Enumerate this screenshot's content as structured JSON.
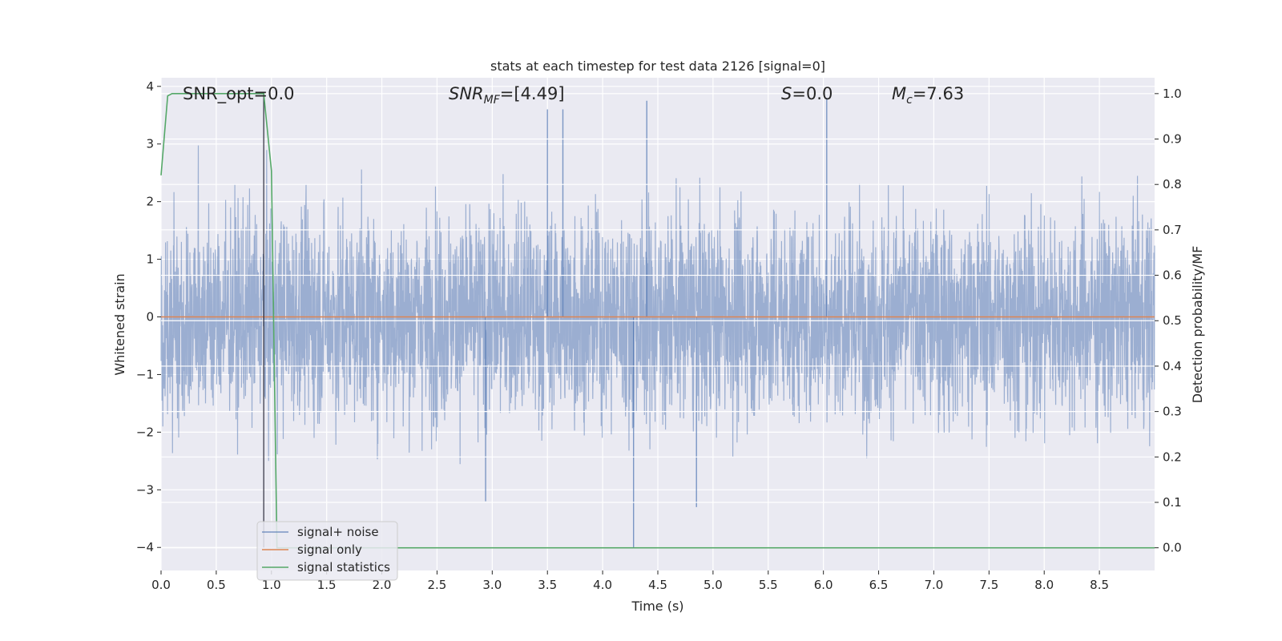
{
  "chart_data": {
    "type": "line",
    "title": "stats at each timestep for test data 2126 [signal=0]",
    "xlabel": "Time (s)",
    "ylabel_left": "Whitened strain",
    "ylabel_right": "Detection probability/MF",
    "xlim": [
      0.0,
      9.0
    ],
    "ylim_left": [
      -4.4,
      4.15
    ],
    "ylim_right": [
      -0.05,
      1.035
    ],
    "x_ticks": [
      "0.0",
      "0.5",
      "1.0",
      "1.5",
      "2.0",
      "2.5",
      "3.0",
      "3.5",
      "4.0",
      "4.5",
      "5.0",
      "5.5",
      "6.0",
      "6.5",
      "7.0",
      "7.5",
      "8.0",
      "8.5"
    ],
    "y_ticks_left": [
      "4",
      "3",
      "2",
      "1",
      "0",
      "−1",
      "−2",
      "−3",
      "−4"
    ],
    "y_ticks_right": [
      "1.0",
      "0.9",
      "0.8",
      "0.7",
      "0.6",
      "0.5",
      "0.4",
      "0.3",
      "0.2",
      "0.1",
      "0.0"
    ],
    "grid": true,
    "legend_position": "lower-left",
    "annotations": {
      "snr_opt": "SNR_opt=0.0",
      "snr_mf_main": "SNR",
      "snr_mf_sub": "MF",
      "snr_mf_value": "=[4.49]",
      "s_label": "S",
      "s_value": "=0.0",
      "mc_main": "M",
      "mc_sub": "c",
      "mc_value": "=7.63"
    },
    "series": [
      {
        "name": "signal+ noise",
        "axis": "left",
        "color": "#4c72b0",
        "style": "noise",
        "approx_std": 0.9,
        "approx_range": [
          -4.0,
          3.75
        ],
        "sample_rate_hz": 2048,
        "notable_extremes": [
          {
            "x": 4.28,
            "y": -4.0
          },
          {
            "x": 4.4,
            "y": 3.75
          },
          {
            "x": 6.03,
            "y": 3.8
          },
          {
            "x": 3.5,
            "y": 3.6
          },
          {
            "x": 3.64,
            "y": 3.6
          },
          {
            "x": 2.94,
            "y": -3.2
          },
          {
            "x": 4.85,
            "y": -3.3
          }
        ]
      },
      {
        "name": "signal only",
        "axis": "left",
        "color": "#dd8452",
        "points": [
          [
            0.0,
            0.0
          ],
          [
            9.0,
            0.0
          ]
        ]
      },
      {
        "name": "signal statistics",
        "axis": "right",
        "color": "#55a868",
        "points": [
          [
            0.0,
            0.82
          ],
          [
            0.06,
            0.995
          ],
          [
            0.1,
            1.0
          ],
          [
            0.93,
            1.0
          ],
          [
            1.0,
            0.83
          ],
          [
            1.05,
            0.0
          ],
          [
            4.2,
            0.0
          ],
          [
            9.0,
            0.0
          ]
        ]
      }
    ],
    "marker_line": {
      "x": 0.93,
      "color": "#2b2b3b"
    }
  }
}
